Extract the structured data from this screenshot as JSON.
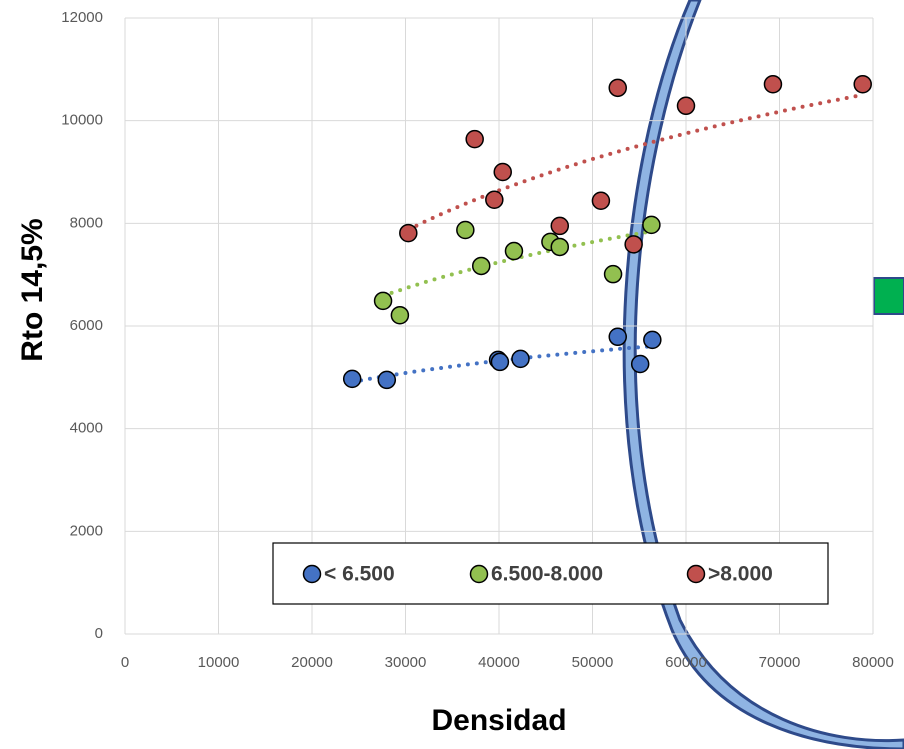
{
  "chart_data": {
    "type": "scatter",
    "x_label": "Densidad",
    "y_label": "Rto 14,5%",
    "xlim": [
      0,
      80000
    ],
    "ylim": [
      0,
      12000
    ],
    "xticks": [
      0,
      10000,
      20000,
      30000,
      40000,
      50000,
      60000,
      70000,
      80000
    ],
    "yticks": [
      0,
      2000,
      4000,
      6000,
      8000,
      10000,
      12000
    ],
    "grid": true,
    "trendline": "log",
    "series": [
      {
        "name": "< 6.500",
        "color": "#4472c4",
        "x": [
          24300,
          28000,
          39900,
          40100,
          42300,
          52700,
          55100,
          56400
        ],
        "values": [
          4970,
          4950,
          5340,
          5300,
          5360,
          5790,
          5260,
          5730
        ]
      },
      {
        "name": "6.500-8.000",
        "color": "#92c050",
        "x": [
          27600,
          29400,
          36400,
          38100,
          41600,
          45500,
          46500,
          52200,
          56300
        ],
        "values": [
          6490,
          6210,
          7870,
          7170,
          7460,
          7640,
          7540,
          7010,
          7970
        ]
      },
      {
        "name": ">8.000",
        "color": "#c0504d",
        "x": [
          30300,
          37400,
          39500,
          40400,
          46500,
          50900,
          52700,
          54400,
          60000,
          69300,
          78900
        ],
        "values": [
          7810,
          9640,
          8460,
          9000,
          7950,
          8440,
          10640,
          7590,
          10290,
          10710,
          10710
        ]
      }
    ]
  }
}
